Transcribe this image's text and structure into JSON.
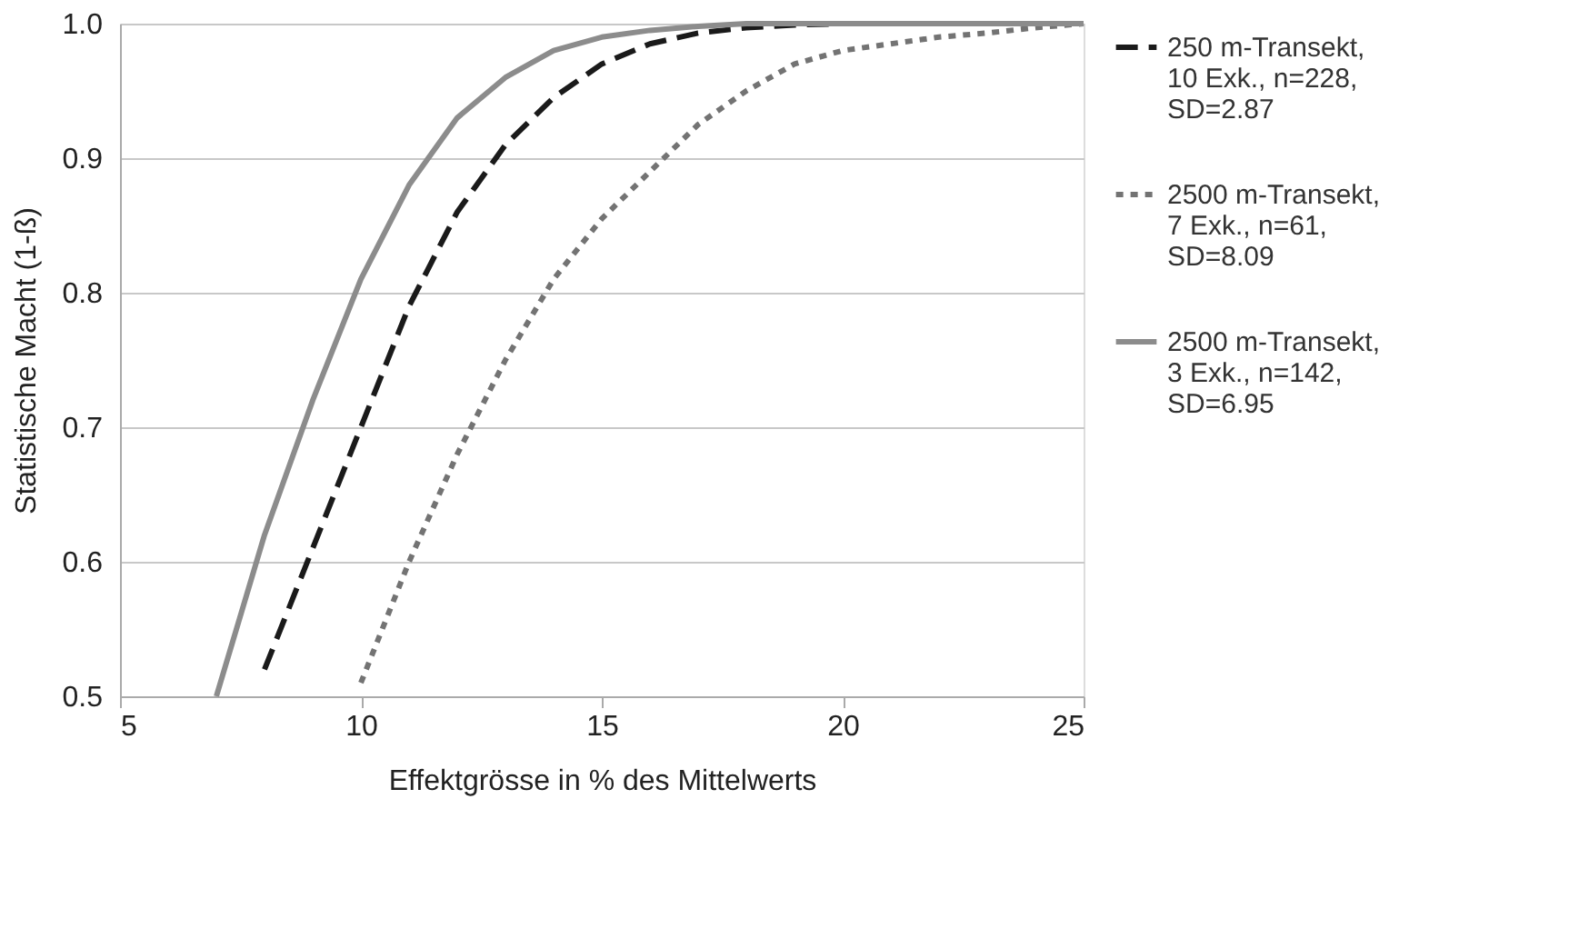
{
  "chart_data": {
    "type": "line",
    "xlabel": "Effektgrösse in % des Mittelwerts",
    "ylabel": "Statistische Macht (1-ß)",
    "xlim": [
      5,
      25
    ],
    "xticks": [
      5,
      10,
      15,
      20,
      25
    ],
    "ylim": [
      0.5,
      1.0
    ],
    "yticks": [
      0.5,
      0.6,
      0.7,
      0.8,
      0.9,
      {
        "value": 1.0,
        "label": "1.0"
      }
    ],
    "grid": "y",
    "legend": "right",
    "marker": "none",
    "series": [
      {
        "name": "250 m-Transekt, 10 Exk., n=228, SD=2.87",
        "color": "#1a1a1a",
        "line_style": "dashed",
        "x": [
          8,
          9,
          10,
          11,
          12,
          13,
          14,
          15,
          16,
          17,
          18,
          19,
          20,
          21,
          22,
          23,
          24,
          25
        ],
        "values": [
          0.52,
          0.61,
          0.7,
          0.79,
          0.86,
          0.91,
          0.945,
          0.97,
          0.985,
          0.993,
          0.997,
          0.999,
          1.0,
          1.0,
          1.0,
          1.0,
          1.0,
          1.0
        ]
      },
      {
        "name": "2500 m-Transekt, 7 Exk., n=61, SD=8.09",
        "color": "#737373",
        "line_style": "dotted",
        "x": [
          10,
          11,
          12,
          13,
          14,
          15,
          16,
          17,
          18,
          19,
          20,
          21,
          22,
          23,
          24,
          25
        ],
        "values": [
          0.51,
          0.6,
          0.68,
          0.75,
          0.81,
          0.855,
          0.89,
          0.925,
          0.95,
          0.97,
          0.98,
          0.985,
          0.99,
          0.993,
          0.997,
          1.0
        ]
      },
      {
        "name": "2500 m-Transekt, 3 Exk., n=142, SD=6.95",
        "color": "#8c8c8c",
        "line_style": "solid",
        "x": [
          7,
          8,
          9,
          10,
          11,
          12,
          13,
          14,
          15,
          16,
          17,
          18,
          19,
          20,
          21,
          22,
          23,
          24,
          25
        ],
        "values": [
          0.5,
          0.62,
          0.72,
          0.81,
          0.88,
          0.93,
          0.96,
          0.98,
          0.99,
          0.995,
          0.998,
          1.0,
          1.0,
          1.0,
          1.0,
          1.0,
          1.0,
          1.0,
          1.0
        ]
      }
    ]
  }
}
